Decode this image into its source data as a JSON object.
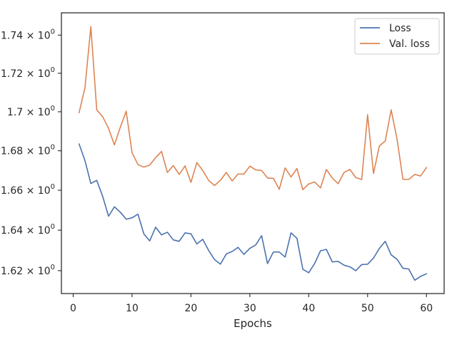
{
  "chart_data": {
    "type": "line",
    "xlabel": "Epochs",
    "ylabel": "",
    "xlim": [
      -2,
      63
    ],
    "ylim": [
      1.6088,
      1.7518
    ],
    "y_scale": "log",
    "legend_position": "top-right",
    "grid": false,
    "x_ticks": [
      {
        "value": 0,
        "label": "0"
      },
      {
        "value": 10,
        "label": "10"
      },
      {
        "value": 20,
        "label": "20"
      },
      {
        "value": 30,
        "label": "30"
      },
      {
        "value": 40,
        "label": "40"
      },
      {
        "value": 50,
        "label": "50"
      },
      {
        "value": 60,
        "label": "60"
      }
    ],
    "y_ticks": [
      {
        "value": 1.62,
        "base": "1.62",
        "exp": "0"
      },
      {
        "value": 1.64,
        "base": "1.64",
        "exp": "0"
      },
      {
        "value": 1.66,
        "base": "1.66",
        "exp": "0"
      },
      {
        "value": 1.68,
        "base": "1.68",
        "exp": "0"
      },
      {
        "value": 1.7,
        "base": "1.7",
        "exp": "0"
      },
      {
        "value": 1.72,
        "base": "1.72",
        "exp": "0"
      },
      {
        "value": 1.74,
        "base": "1.74",
        "exp": "0"
      }
    ],
    "series": [
      {
        "name": "Loss",
        "color": "#4c72b0",
        "x": [
          1,
          2,
          3,
          4,
          5,
          6,
          7,
          8,
          9,
          10,
          11,
          12,
          13,
          14,
          15,
          16,
          17,
          18,
          19,
          20,
          21,
          22,
          23,
          24,
          25,
          26,
          27,
          28,
          29,
          30,
          31,
          32,
          33,
          34,
          35,
          36,
          37,
          38,
          39,
          40,
          41,
          42,
          43,
          44,
          45,
          46,
          47,
          48,
          49,
          50,
          51,
          52,
          53,
          54,
          55,
          56,
          57,
          58,
          59,
          60
        ],
        "y": [
          1.6835,
          1.675,
          1.6634,
          1.665,
          1.657,
          1.647,
          1.6517,
          1.649,
          1.6455,
          1.6462,
          1.648,
          1.6382,
          1.6347,
          1.6415,
          1.6377,
          1.639,
          1.6352,
          1.6345,
          1.6387,
          1.6382,
          1.6332,
          1.6355,
          1.63,
          1.6255,
          1.6232,
          1.6282,
          1.6295,
          1.6315,
          1.628,
          1.631,
          1.6327,
          1.6373,
          1.6235,
          1.6292,
          1.6292,
          1.6267,
          1.6387,
          1.636,
          1.6207,
          1.619,
          1.6235,
          1.6298,
          1.6305,
          1.6243,
          1.6246,
          1.6227,
          1.6219,
          1.62,
          1.623,
          1.6232,
          1.6262,
          1.631,
          1.6345,
          1.6278,
          1.6256,
          1.6212,
          1.6208,
          1.6153,
          1.6172,
          1.6185
        ]
      },
      {
        "name": "Val. loss",
        "color": "#dd8452",
        "x": [
          1,
          2,
          3,
          4,
          5,
          6,
          7,
          8,
          9,
          10,
          11,
          12,
          13,
          14,
          15,
          16,
          17,
          18,
          19,
          20,
          21,
          22,
          23,
          24,
          25,
          26,
          27,
          28,
          29,
          30,
          31,
          32,
          33,
          34,
          35,
          36,
          37,
          38,
          39,
          40,
          41,
          42,
          43,
          44,
          45,
          46,
          47,
          48,
          49,
          50,
          51,
          52,
          53,
          54,
          55,
          56,
          57,
          58,
          59,
          60
        ],
        "y": [
          1.6995,
          1.7125,
          1.7445,
          1.701,
          1.6975,
          1.6915,
          1.683,
          1.692,
          1.7003,
          1.679,
          1.673,
          1.6717,
          1.6727,
          1.6765,
          1.6797,
          1.669,
          1.6725,
          1.668,
          1.6723,
          1.664,
          1.674,
          1.67,
          1.665,
          1.6624,
          1.665,
          1.669,
          1.6647,
          1.6682,
          1.6682,
          1.6722,
          1.6703,
          1.67,
          1.6662,
          1.666,
          1.6605,
          1.6713,
          1.6667,
          1.671,
          1.6603,
          1.6632,
          1.6642,
          1.6612,
          1.6705,
          1.6662,
          1.6633,
          1.669,
          1.6705,
          1.6664,
          1.6654,
          1.6985,
          1.6685,
          1.6825,
          1.685,
          1.701,
          1.686,
          1.6655,
          1.6655,
          1.668,
          1.6672,
          1.6715
        ]
      }
    ]
  }
}
